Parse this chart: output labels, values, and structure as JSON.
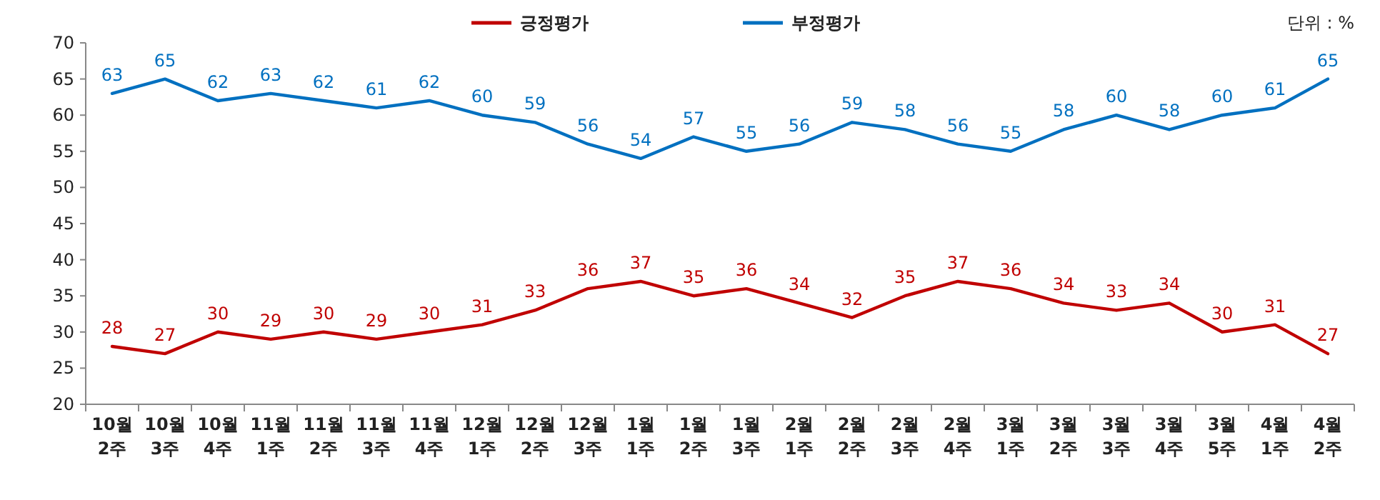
{
  "chart_data": {
    "type": "line",
    "annotations": [
      "단위 : %"
    ],
    "categories": [
      "10월 2주",
      "10월 3주",
      "10월 4주",
      "11월 1주",
      "11월 2주",
      "11월 3주",
      "11월 4주",
      "12월 1주",
      "12월 2주",
      "12월 3주",
      "1월 1주",
      "1월 2주",
      "1월 3주",
      "2월 1주",
      "2월 2주",
      "2월 3주",
      "2월 4주",
      "3월 1주",
      "3월 2주",
      "3월 3주",
      "3월 4주",
      "3월 5주",
      "4월 1주",
      "4월 2주"
    ],
    "series": [
      {
        "name": "긍정평가",
        "color": "#c00000",
        "values": [
          28,
          27,
          30,
          29,
          30,
          29,
          30,
          31,
          33,
          36,
          37,
          35,
          36,
          34,
          32,
          35,
          37,
          36,
          34,
          33,
          34,
          30,
          31,
          27
        ]
      },
      {
        "name": "부정평가",
        "color": "#0070c0",
        "values": [
          63,
          65,
          62,
          63,
          62,
          61,
          62,
          60,
          59,
          56,
          54,
          57,
          55,
          56,
          59,
          58,
          56,
          55,
          58,
          60,
          58,
          60,
          61,
          65
        ]
      }
    ],
    "ylim": [
      20,
      70
    ],
    "yticks": [
      20,
      25,
      30,
      35,
      40,
      45,
      50,
      55,
      60,
      65,
      70
    ],
    "data_labels": true,
    "legend": "top",
    "marker": "none",
    "line_style": "solid",
    "grid": false
  }
}
